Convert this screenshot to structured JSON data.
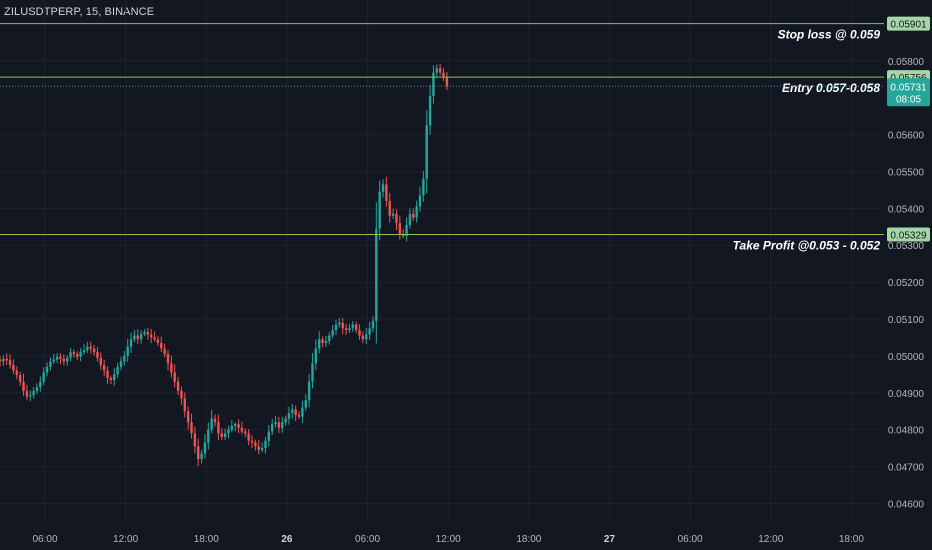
{
  "symbol_title": "ZILUSDTPERP, 15, BINANCE",
  "colors": {
    "background": "#131722",
    "grid": "#1e222d",
    "axis_text": "#b2b5be",
    "up": "#26a69a",
    "down": "#ef5350",
    "level_line": "#8bc34a",
    "level_badge": "#a5d6a7",
    "current_badge": "#26a69a",
    "annotation_text": "#ffffff"
  },
  "chart_data": {
    "type": "candlestick",
    "price_axis": {
      "ylim": [
        0.04555,
        0.05965
      ],
      "ticks": [
        "0.05800",
        "0.05600",
        "0.05500",
        "0.05400",
        "0.05300",
        "0.05200",
        "0.05100",
        "0.05000",
        "0.04900",
        "0.04800",
        "0.04700",
        "0.04600"
      ]
    },
    "time_axis": {
      "ticks": [
        {
          "label": "06:00",
          "t": 0
        },
        {
          "label": "12:00",
          "t": 24
        },
        {
          "label": "18:00",
          "t": 48
        },
        {
          "label": "26",
          "t": 72
        },
        {
          "label": "06:00",
          "t": 96
        },
        {
          "label": "12:00",
          "t": 120
        },
        {
          "label": "18:00",
          "t": 144
        },
        {
          "label": "27",
          "t": 168
        },
        {
          "label": "06:00",
          "t": 192
        },
        {
          "label": "12:00",
          "t": 216
        },
        {
          "label": "18:00",
          "t": 240
        }
      ]
    },
    "levels": [
      {
        "name": "stop",
        "price": 0.05901,
        "badge": "0.05901",
        "label": "Stop loss @ 0.059"
      },
      {
        "name": "entry",
        "price": 0.05756,
        "badge": "0.05756",
        "label": "Entry 0.057-0.058"
      },
      {
        "name": "take-profit",
        "price": 0.05329,
        "badge": "0.05329",
        "label": "Take Profit  @0.053 - 0.052"
      }
    ],
    "current_price": {
      "price": 0.05731,
      "value": "0.05731",
      "countdown": "08:05"
    },
    "closes": [
      0.04985,
      0.04992,
      0.04988,
      0.04975,
      0.0496,
      0.04948,
      0.0493,
      0.04905,
      0.0489,
      0.04893,
      0.04905,
      0.04915,
      0.0493,
      0.04955,
      0.0497,
      0.04985,
      0.0499,
      0.04998,
      0.04992,
      0.04985,
      0.04995,
      0.0501,
      0.05005,
      0.04998,
      0.0501,
      0.05015,
      0.05025,
      0.0502,
      0.0501,
      0.04995,
      0.04975,
      0.0496,
      0.0494,
      0.04935,
      0.0495,
      0.0497,
      0.04985,
      0.05,
      0.05025,
      0.05045,
      0.05055,
      0.05045,
      0.0506,
      0.05065,
      0.05058,
      0.0505,
      0.05045,
      0.05035,
      0.0502,
      0.05005,
      0.0498,
      0.04955,
      0.0493,
      0.04905,
      0.04885,
      0.0485,
      0.0482,
      0.0479,
      0.04755,
      0.0472,
      0.04735,
      0.04765,
      0.048,
      0.0483,
      0.0482,
      0.0479,
      0.0478,
      0.0479,
      0.048,
      0.0481,
      0.04815,
      0.04805,
      0.04795,
      0.0479,
      0.0477,
      0.04765,
      0.04755,
      0.04745,
      0.0475,
      0.0477,
      0.04795,
      0.04815,
      0.0482,
      0.04805,
      0.0482,
      0.0483,
      0.04845,
      0.04855,
      0.0484,
      0.04835,
      0.0486,
      0.0488,
      0.0493,
      0.0498,
      0.0502,
      0.05045,
      0.05035,
      0.0504,
      0.05055,
      0.0507,
      0.05085,
      0.0509,
      0.05075,
      0.0507,
      0.05075,
      0.05085,
      0.0507,
      0.05055,
      0.05045,
      0.05058,
      0.05075,
      0.05095,
      0.05345,
      0.05445,
      0.05465,
      0.0542,
      0.0538,
      0.05385,
      0.0536,
      0.0533,
      0.05325,
      0.05355,
      0.05385,
      0.05375,
      0.05405,
      0.05435,
      0.0548,
      0.05625,
      0.05705,
      0.05768,
      0.0578,
      0.05768,
      0.05755,
      0.05731
    ]
  }
}
